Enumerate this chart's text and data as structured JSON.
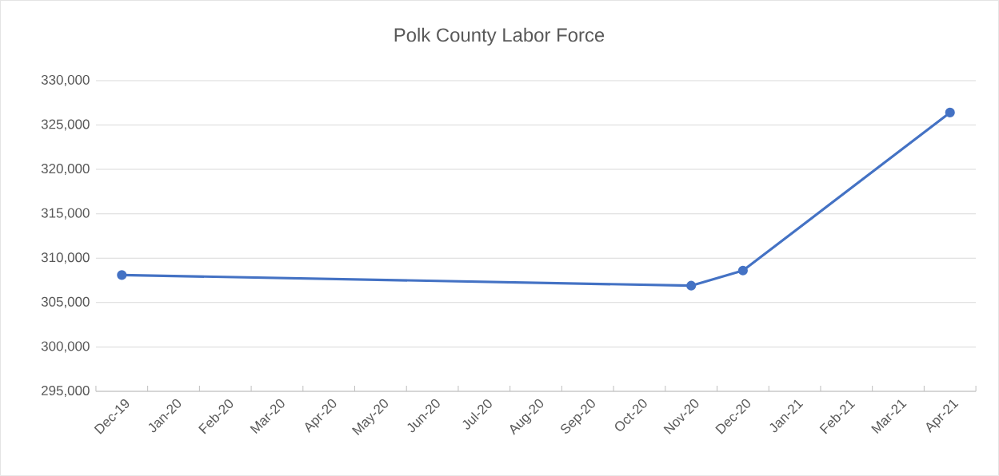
{
  "chart_data": {
    "type": "line",
    "title": "Polk County Labor Force",
    "x": [
      "2019-12",
      "2020-11",
      "2020-12",
      "2021-04"
    ],
    "series": [
      {
        "color": "#4472c4",
        "values": [
          308100,
          306900,
          308600,
          326400
        ]
      }
    ],
    "xlim": [
      "2019-11-16",
      "2021-04-16"
    ],
    "xticks": [
      {
        "value": "2019-12",
        "label": "Dec-19"
      },
      {
        "value": "2020-01",
        "label": "Jan-20"
      },
      {
        "value": "2020-02",
        "label": "Feb-20"
      },
      {
        "value": "2020-03",
        "label": "Mar-20"
      },
      {
        "value": "2020-04",
        "label": "Apr-20"
      },
      {
        "value": "2020-05",
        "label": "May-20"
      },
      {
        "value": "2020-06",
        "label": "Jun-20"
      },
      {
        "value": "2020-07",
        "label": "Jul-20"
      },
      {
        "value": "2020-08",
        "label": "Aug-20"
      },
      {
        "value": "2020-09",
        "label": "Sep-20"
      },
      {
        "value": "2020-10",
        "label": "Oct-20"
      },
      {
        "value": "2020-11",
        "label": "Nov-20"
      },
      {
        "value": "2020-12",
        "label": "Dec-20"
      },
      {
        "value": "2021-01",
        "label": "Jan-21"
      },
      {
        "value": "2021-02",
        "label": "Feb-21"
      },
      {
        "value": "2021-03",
        "label": "Mar-21"
      },
      {
        "value": "2021-04",
        "label": "Apr-21"
      }
    ],
    "ylim": [
      295000,
      330000
    ],
    "yticks": [
      {
        "value": 295000,
        "label": "295,000"
      },
      {
        "value": 300000,
        "label": "300,000"
      },
      {
        "value": 305000,
        "label": "305,000"
      },
      {
        "value": 310000,
        "label": "310,000"
      },
      {
        "value": 315000,
        "label": "315,000"
      },
      {
        "value": 320000,
        "label": "320,000"
      },
      {
        "value": 325000,
        "label": "325,000"
      },
      {
        "value": 330000,
        "label": "330,000"
      }
    ],
    "grid": "y",
    "marker": "circle",
    "line_style": "solid",
    "legend": false
  }
}
